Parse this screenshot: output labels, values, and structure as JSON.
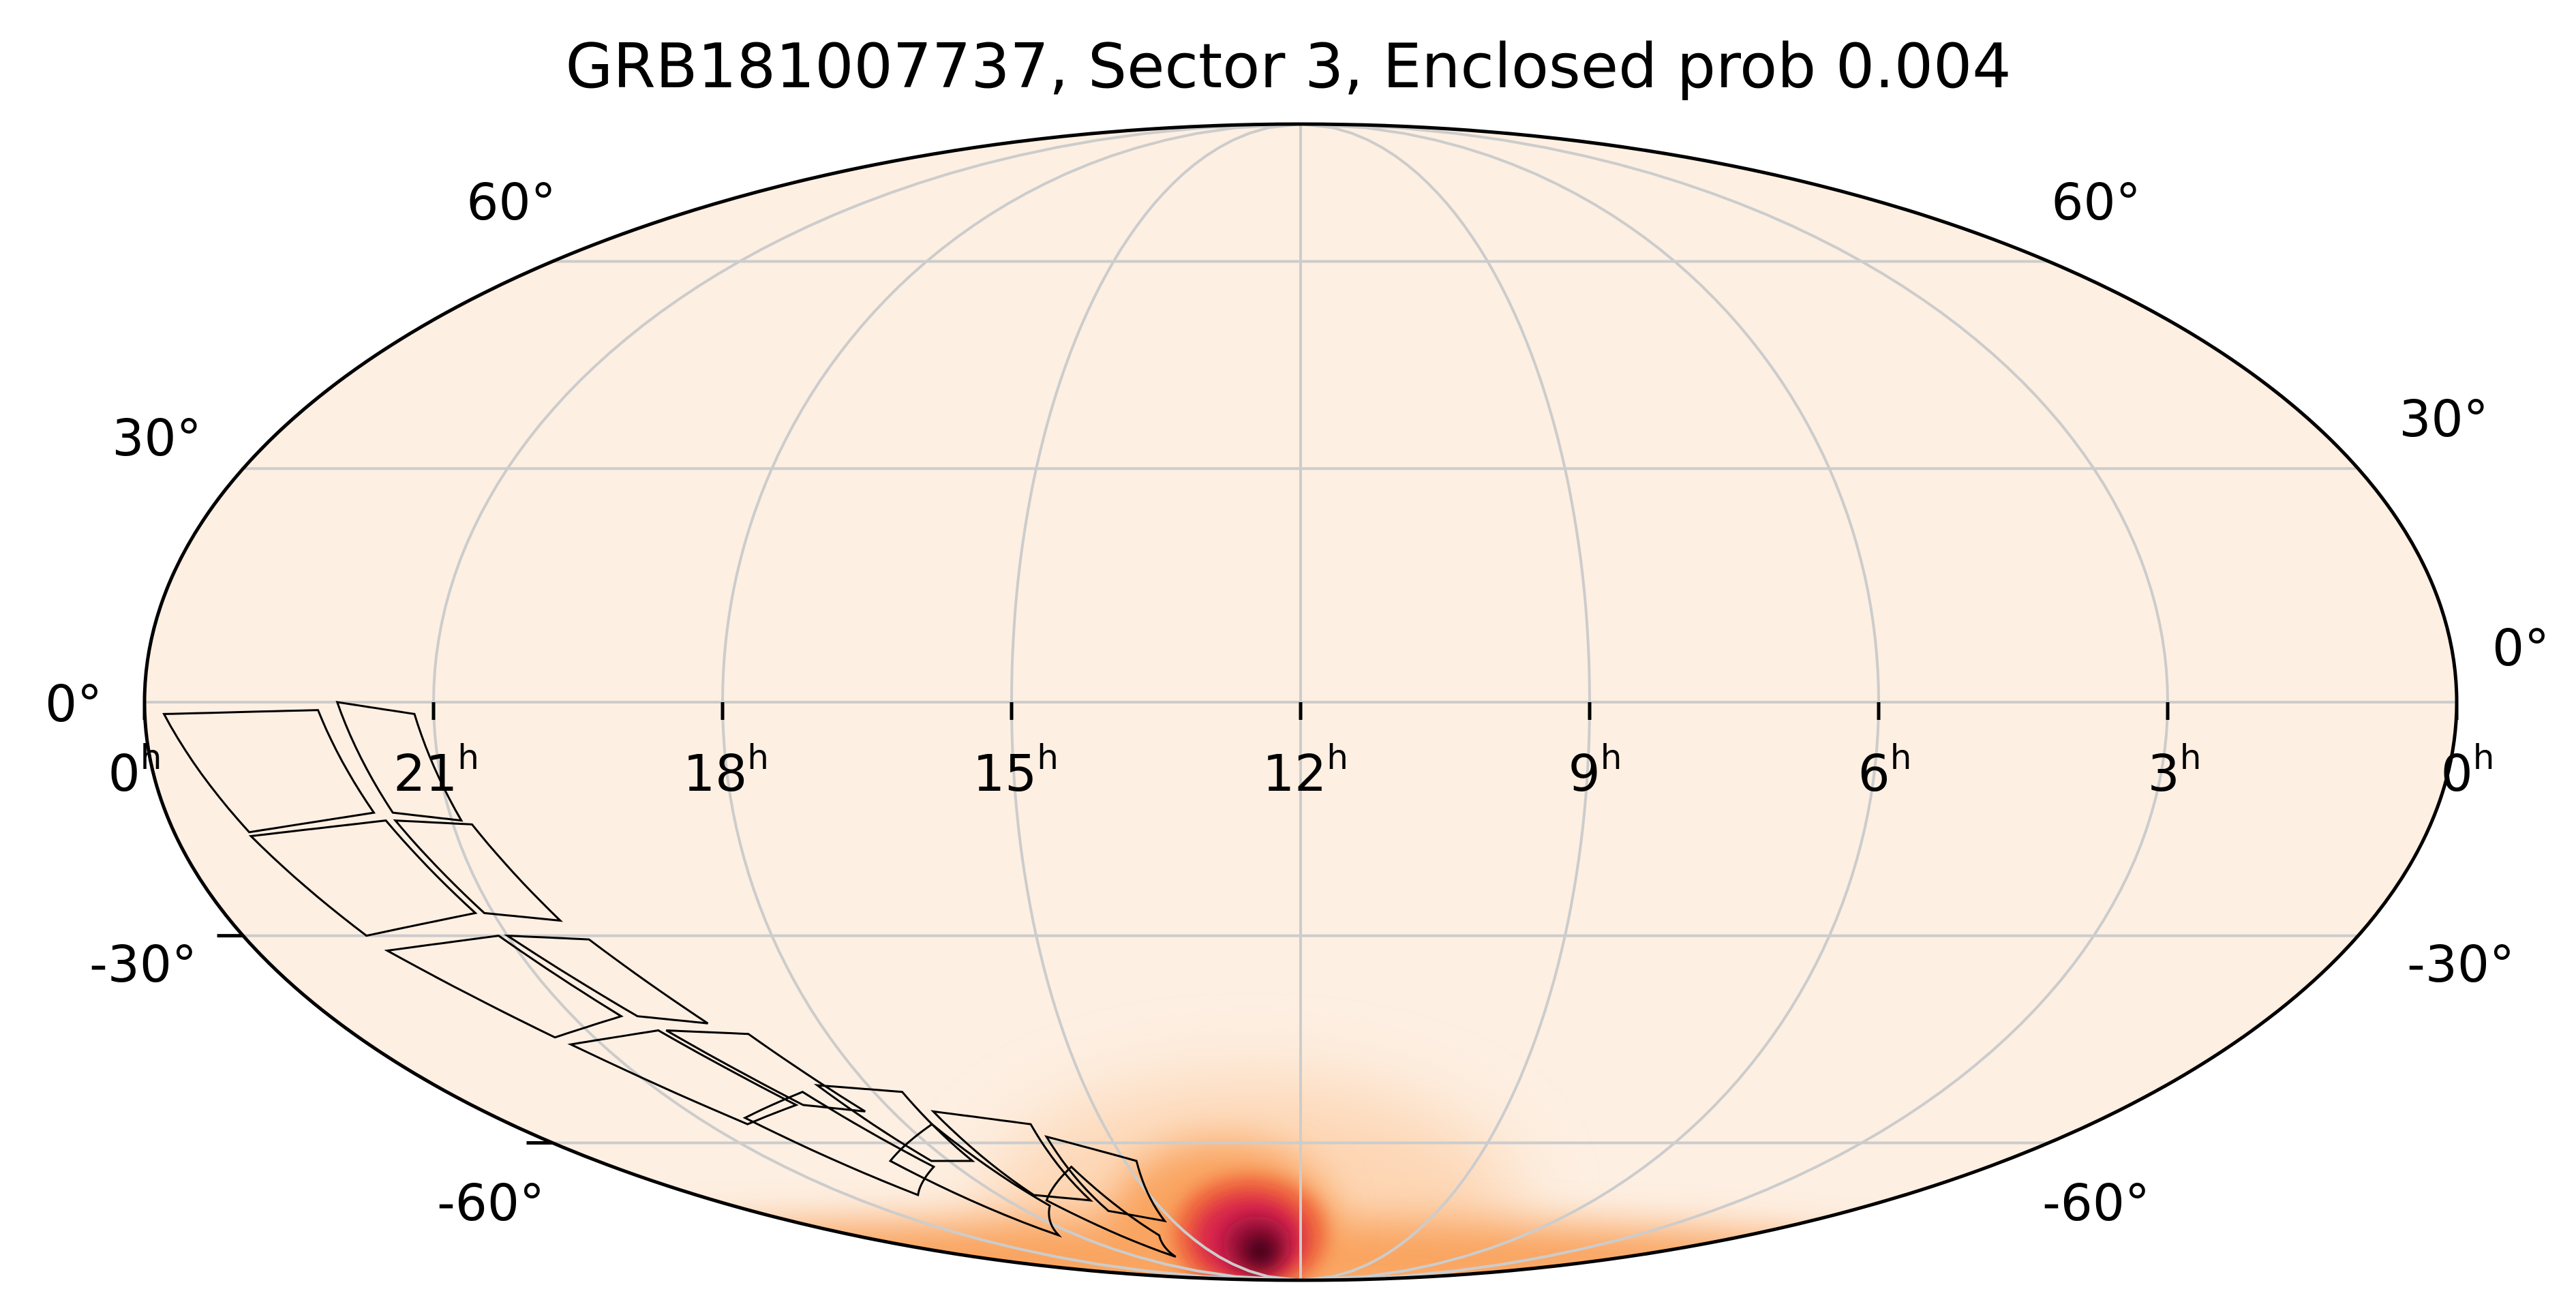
{
  "chart_data": {
    "type": "heatmap",
    "projection": "mollweide",
    "title": "GRB181007737, Sector 3, Enclosed prob 0.004",
    "ra_tick_hours": [
      0,
      21,
      18,
      15,
      12,
      9,
      6,
      3,
      0
    ],
    "ra_tick_labels": [
      "0",
      "21",
      "18",
      "15",
      "12",
      "9",
      "6",
      "3",
      "0"
    ],
    "ra_unit_symbol": "h",
    "dec_ticks_deg": [
      60,
      30,
      0,
      -30,
      -60
    ],
    "dec_tick_labels": [
      "60°",
      "30°",
      "0°",
      "-30°",
      "-60°"
    ],
    "grid": true,
    "colormap": [
      "#fdefe2",
      "#fdd6b4",
      "#f9a461",
      "#f0683a",
      "#d9254c",
      "#9b0a3e",
      "#3a0410"
    ],
    "probability_peak": {
      "ra_h": 13.3,
      "dec_deg": -76,
      "spread_deg": 8
    },
    "probability_outer_glow": {
      "ra_h": 13.0,
      "dec_deg": -70,
      "spread_deg": 16
    },
    "coverage_ring_dec_deg": [
      -52,
      -49,
      -45
    ],
    "camera_footprints": [
      {
        "ra": [
          22.0,
          21.2,
          20.9,
          21.6
        ],
        "dec": [
          0,
          -1.5,
          -15,
          -14
        ]
      },
      {
        "ra": [
          23.8,
          22.2,
          21.8,
          23.2
        ],
        "dec": [
          -1.5,
          -1.0,
          -14,
          -16.5
        ]
      },
      {
        "ra": [
          21.6,
          20.8,
          20.3,
          21.1
        ],
        "dec": [
          -15,
          -15.5,
          -28,
          -27
        ]
      },
      {
        "ra": [
          23.2,
          21.7,
          21.2,
          22.6
        ],
        "dec": [
          -17,
          -15,
          -27,
          -30
        ]
      },
      {
        "ra": [
          21.0,
          20.1,
          19.4,
          20.2
        ],
        "dec": [
          -30,
          -30.5,
          -42,
          -41
        ]
      },
      {
        "ra": [
          22.5,
          21.1,
          20.4,
          21.5
        ],
        "dec": [
          -32,
          -30,
          -41,
          -44
        ]
      },
      {
        "ra": [
          20.0,
          19.0,
          18.4,
          19.2
        ],
        "dec": [
          -43,
          -43.5,
          -55,
          -54
        ]
      },
      {
        "ra": [
          21.4,
          20.1,
          19.3,
          20.4
        ],
        "dec": [
          -45,
          -43,
          -54,
          -57
        ]
      },
      {
        "ra": [
          18.7,
          17.6,
          17.6,
          18.3
        ],
        "dec": [
          -51,
          -52,
          -63,
          -63
        ]
      },
      {
        "ra": [
          20.3,
          19.0,
          18.4,
          19.6
        ],
        "dec": [
          -56,
          -52,
          -64,
          -69
        ]
      },
      {
        "ra": [
          17.4,
          16.1,
          16.3,
          17.3
        ],
        "dec": [
          -55,
          -57,
          -70,
          -69
        ]
      },
      {
        "ra": [
          19.0,
          17.6,
          17.3,
          18.5
        ],
        "dec": [
          -63,
          -57,
          -71,
          -77
        ]
      },
      {
        "ra": [
          16.0,
          14.8,
          15.2,
          16.2
        ],
        "dec": [
          -59,
          -63,
          -74,
          -72
        ]
      },
      {
        "ra": [
          17.2,
          16.0,
          15.8,
          16.6
        ],
        "dec": [
          -70,
          -64,
          -77,
          -82
        ]
      }
    ]
  }
}
